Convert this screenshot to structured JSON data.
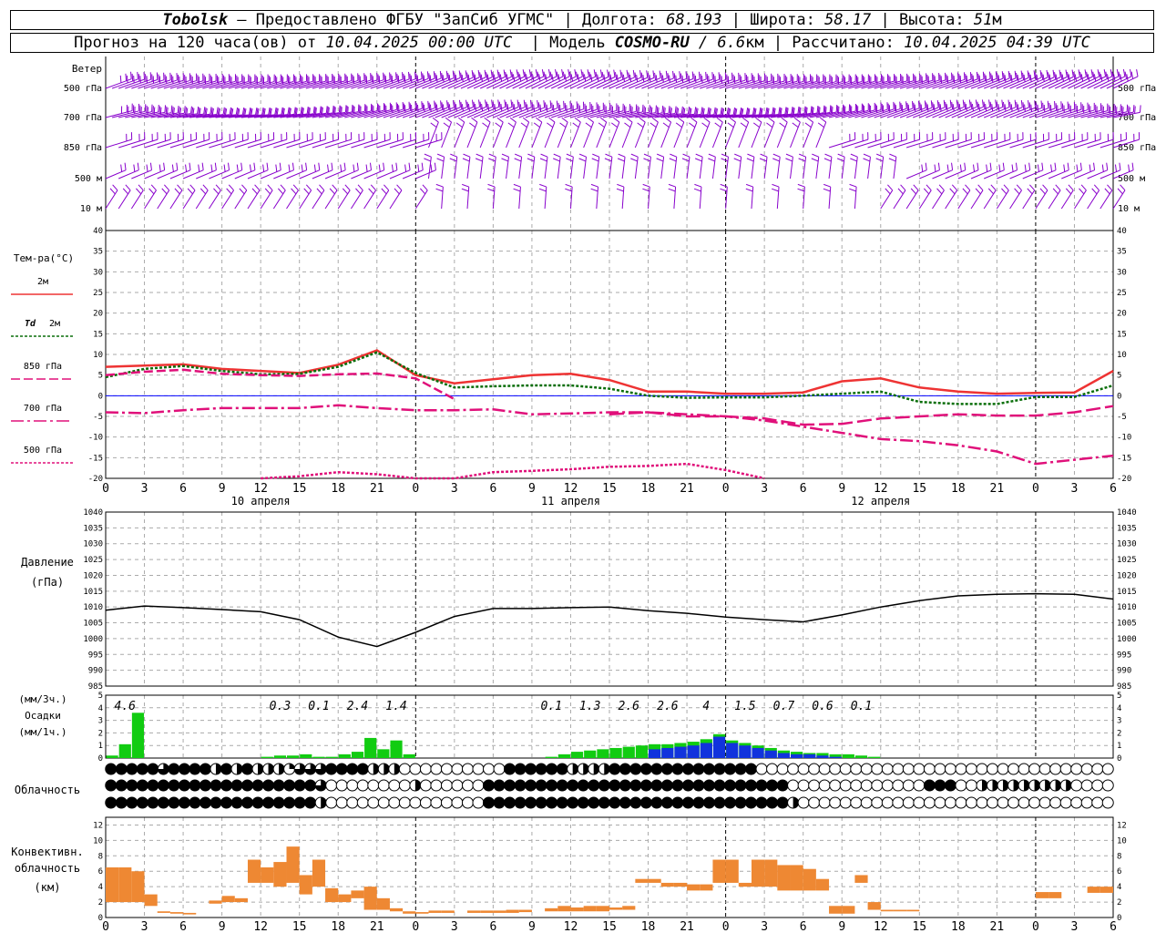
{
  "header": {
    "line1": {
      "city": "Tobolsk",
      "provider": " — Предоставлено ФГБУ \"ЗапСиб УГМС\" | Долгота: ",
      "lon": "68.193",
      "lat_label": " | Широта: ",
      "lat": "58.17",
      "alt_label": " | Высота: ",
      "alt": "51",
      "alt_unit": "м"
    },
    "line2": {
      "prefix": "Прогноз на 120 часа(ов) от ",
      "start": "10.04.2025 00:00 UTC",
      "model_label": "  | Модель ",
      "model": "COSMO-RU",
      "res": " / 6.6",
      "res_unit": "км",
      "calc_label": " | Рассчитано: ",
      "calc": "10.04.2025 04:39 UTC"
    }
  },
  "colors": {
    "wind": "#8800cc",
    "t2m": "#ee3333",
    "td2m": "#0a6e0a",
    "t850": "#e0107a",
    "t700": "#e0107a",
    "t500": "#e0107a",
    "precip_rain": "#11cc11",
    "precip_snow": "#1133dd",
    "conv": "#ee8833",
    "pressure": "#000000",
    "zero_line": "#0000ff",
    "grid": "#aaaaaa"
  },
  "chart_data": [
    {
      "panel": "wind",
      "type": "wind-barbs",
      "title": "Ветер",
      "levels": [
        "500 гПа",
        "700 гПа",
        "850 гПа",
        "500 м",
        "10  м"
      ]
    },
    {
      "panel": "temperature",
      "type": "line",
      "ylabel": "Тем-ра(°C)",
      "ylim": [
        -20,
        40
      ],
      "yticks": [
        -20,
        -15,
        -10,
        -5,
        0,
        5,
        10,
        15,
        20,
        25,
        30,
        35,
        40
      ],
      "x_hours": [
        0,
        3,
        6,
        9,
        12,
        15,
        18,
        21,
        24,
        27,
        30,
        33,
        36,
        39,
        42,
        45,
        48,
        51,
        54,
        57,
        60,
        63,
        66,
        69,
        72,
        75,
        78
      ],
      "series": [
        {
          "name": "2м",
          "style": "solid",
          "values": [
            7,
            7.3,
            7.6,
            6.5,
            6,
            5.5,
            7.5,
            11,
            5,
            3,
            4,
            5,
            5.3,
            3.8,
            1,
            1,
            0.5,
            0.5,
            0.8,
            3.5,
            4.2,
            2,
            1,
            0.5,
            0.7,
            0.8,
            6
          ]
        },
        {
          "name": "Td 2м",
          "style": "dashed",
          "values": [
            4.5,
            6.5,
            7.2,
            6,
            5.2,
            5.3,
            7,
            10.5,
            5.5,
            2,
            2.3,
            2.5,
            2.5,
            1.7,
            0,
            -0.5,
            -0.4,
            -0.4,
            0,
            0.5,
            1,
            -1.5,
            -2,
            -2,
            -0.3,
            -0.3,
            2.5
          ]
        },
        {
          "name": "850 гПа",
          "style": "long-dash",
          "values": [
            5,
            5.8,
            6.3,
            5.3,
            5,
            4.8,
            5.2,
            5.4,
            4.2,
            -0.8,
            null,
            null,
            null,
            null,
            null,
            null,
            null,
            null,
            null,
            null,
            null,
            null,
            null,
            null,
            null,
            null,
            null
          ]
        },
        {
          "name": "700 гПа",
          "style": "dash-dot",
          "values": [
            -4,
            -4.2,
            -3.5,
            -3,
            -3,
            -3,
            -2.3,
            -3,
            -3.5,
            -3.5,
            -3.3,
            -4.5,
            -4.3,
            -4,
            -4,
            -4.5,
            -5,
            -6,
            -7.5,
            -9,
            -10.5,
            -11,
            -12,
            -13.5,
            -16.5,
            -15.5,
            -14.5
          ]
        },
        {
          "name": "500 гПа",
          "style": "dotted",
          "values": [
            null,
            null,
            null,
            null,
            -20,
            -19.5,
            -18.5,
            -19,
            -20.5,
            -22,
            -18.5,
            -18.2,
            -17.8,
            -17.2,
            -17,
            -16.5,
            -18,
            -20.2,
            null,
            null,
            null,
            null,
            null,
            null,
            null,
            null,
            null
          ]
        },
        {
          "name": "",
          "style": "extra-long-dash",
          "values": [
            null,
            null,
            null,
            null,
            null,
            null,
            null,
            null,
            null,
            null,
            null,
            null,
            null,
            -4.5,
            -4,
            -5,
            -5,
            -5.5,
            -7,
            -6.8,
            -5.5,
            -5,
            -4.5,
            -4.8,
            -4.8,
            -4,
            -2.5
          ]
        }
      ],
      "x_tick_labels": [
        "0",
        "3",
        "6",
        "9",
        "12",
        "15",
        "18",
        "21",
        "0",
        "3",
        "6",
        "9",
        "12",
        "15",
        "18",
        "21",
        "0",
        "3",
        "6",
        "9",
        "12",
        "15",
        "18",
        "21",
        "0",
        "3",
        "6"
      ],
      "day_labels": [
        "10 апреля",
        "11 апреля",
        "12 апреля"
      ]
    },
    {
      "panel": "pressure",
      "type": "line",
      "ylabel": "Давление",
      "yunit": "(гПа)",
      "ylim": [
        985,
        1040
      ],
      "yticks": [
        985,
        990,
        995,
        1000,
        1005,
        1010,
        1015,
        1020,
        1025,
        1030,
        1035,
        1040
      ],
      "x_hours": [
        0,
        3,
        6,
        9,
        12,
        15,
        18,
        21,
        24,
        27,
        30,
        33,
        36,
        39,
        42,
        45,
        48,
        51,
        54,
        57,
        60,
        63,
        66,
        69,
        72,
        75,
        78
      ],
      "values": [
        1009,
        1010.3,
        1009.8,
        1009.2,
        1008.5,
        1006,
        1000.5,
        997.5,
        1002,
        1007,
        1009.5,
        1009.5,
        1009.8,
        1010,
        1008.8,
        1008,
        1006.8,
        1006,
        1005.3,
        1007.5,
        1010,
        1012,
        1013.5,
        1014,
        1014.2,
        1014,
        1012.5
      ]
    },
    {
      "panel": "precipitation",
      "type": "bar",
      "ylabel": "(мм/3ч.)",
      "ylabel2": "Осадки",
      "ylabel3": "(мм/1ч.)",
      "ylim": [
        0,
        5
      ],
      "yticks": [
        0,
        1,
        2,
        3,
        4,
        5
      ],
      "totals_3h": [
        {
          "hour": 1.5,
          "label": "4.6"
        },
        {
          "hour": 13.5,
          "label": "0.3"
        },
        {
          "hour": 16.5,
          "label": "0.1"
        },
        {
          "hour": 19.5,
          "label": "2.4"
        },
        {
          "hour": 22.5,
          "label": "1.4"
        },
        {
          "hour": 34.5,
          "label": "0.1"
        },
        {
          "hour": 37.5,
          "label": "1.3"
        },
        {
          "hour": 40.5,
          "label": "2.6"
        },
        {
          "hour": 43.5,
          "label": "2.6"
        },
        {
          "hour": 46.5,
          "label": "4"
        },
        {
          "hour": 49.5,
          "label": "1.5"
        },
        {
          "hour": 52.5,
          "label": "0.7"
        },
        {
          "hour": 55.5,
          "label": "0.6"
        },
        {
          "hour": 58.5,
          "label": "0.1"
        }
      ],
      "rain_1h": [
        0.2,
        1.1,
        3.6,
        0,
        0,
        0,
        0,
        0,
        0,
        0,
        0,
        0,
        0.1,
        0.2,
        0.2,
        0.3,
        0.1,
        0.1,
        0.3,
        0.5,
        1.6,
        0.7,
        1.4,
        0.3,
        0,
        0,
        0,
        0,
        0,
        0,
        0,
        0,
        0,
        0,
        0.1,
        0.3,
        0.5,
        0.6,
        0.7,
        0.8,
        0.9,
        1,
        1.1,
        1.1,
        1.2,
        1.3,
        1.5,
        1.9,
        1.4,
        1.2,
        1,
        0.8,
        0.6,
        0.5,
        0.4,
        0.4,
        0.3,
        0.3,
        0.2,
        0.1,
        0
      ],
      "snow_1h": [
        0,
        0,
        0,
        0,
        0,
        0,
        0,
        0,
        0,
        0,
        0,
        0,
        0,
        0,
        0,
        0,
        0,
        0,
        0,
        0,
        0,
        0,
        0,
        0,
        0,
        0,
        0,
        0,
        0,
        0,
        0,
        0,
        0,
        0,
        0,
        0,
        0,
        0,
        0,
        0,
        0,
        0,
        0.7,
        0.8,
        0.9,
        1,
        1.2,
        1.7,
        1.2,
        1,
        0.8,
        0.6,
        0.4,
        0.3,
        0.3,
        0.2,
        0.1,
        0,
        0,
        0,
        0
      ]
    },
    {
      "panel": "cloudiness",
      "type": "table",
      "ylabel": "Облачность",
      "rows": [
        "444443444424242221333444422200000000004444442222444444444444440000000000000000000000000000000000",
        "444444444444444444443000000002000000444444444444444444444444444440000000000000444002222222220000",
        "444444444444444444442000000000000000444444444444444444444444444442000000000000000000000000000000"
      ]
    },
    {
      "panel": "convective",
      "type": "bar",
      "ylabel": "Конвективн.",
      "ylabel2": "облачность",
      "ylabel3": "(км)",
      "ylim": [
        0,
        13
      ],
      "yticks": [
        0,
        2,
        4,
        6,
        8,
        10,
        12
      ],
      "layers": [
        {
          "h": 0,
          "base": 2,
          "top": 6.5
        },
        {
          "h": 1,
          "base": 2,
          "top": 6.5
        },
        {
          "h": 2,
          "base": 2,
          "top": 6
        },
        {
          "h": 3,
          "base": 1.5,
          "top": 3
        },
        {
          "h": 4,
          "base": 0.6,
          "top": 0.8
        },
        {
          "h": 5,
          "base": 0.5,
          "top": 0.7
        },
        {
          "h": 6,
          "base": 0.4,
          "top": 0.6
        },
        {
          "h": 8,
          "base": 1.8,
          "top": 2.2
        },
        {
          "h": 9,
          "base": 2,
          "top": 2.8
        },
        {
          "h": 10,
          "base": 2,
          "top": 2.5
        },
        {
          "h": 11,
          "base": 4.5,
          "top": 7.5
        },
        {
          "h": 12,
          "base": 4.5,
          "top": 6.5
        },
        {
          "h": 13,
          "base": 4,
          "top": 7.2
        },
        {
          "h": 14,
          "base": 4.5,
          "top": 9.2
        },
        {
          "h": 15,
          "base": 3,
          "top": 5.5
        },
        {
          "h": 16,
          "base": 4,
          "top": 7.5
        },
        {
          "h": 17,
          "base": 2,
          "top": 3.8
        },
        {
          "h": 18,
          "base": 2,
          "top": 3
        },
        {
          "h": 19,
          "base": 2.5,
          "top": 3.5
        },
        {
          "h": 20,
          "base": 1,
          "top": 4
        },
        {
          "h": 21,
          "base": 1,
          "top": 2.5
        },
        {
          "h": 22,
          "base": 0.8,
          "top": 1.2
        },
        {
          "h": 23,
          "base": 0.5,
          "top": 0.8
        },
        {
          "h": 24,
          "base": 0.5,
          "top": 0.7
        },
        {
          "h": 25,
          "base": 0.6,
          "top": 0.9
        },
        {
          "h": 26,
          "base": 0.6,
          "top": 0.9
        },
        {
          "h": 28,
          "base": 0.6,
          "top": 0.9
        },
        {
          "h": 29,
          "base": 0.6,
          "top": 0.9
        },
        {
          "h": 30,
          "base": 0.6,
          "top": 0.9
        },
        {
          "h": 31,
          "base": 0.6,
          "top": 1
        },
        {
          "h": 32,
          "base": 0.7,
          "top": 1
        },
        {
          "h": 34,
          "base": 0.8,
          "top": 1.2
        },
        {
          "h": 35,
          "base": 0.8,
          "top": 1.5
        },
        {
          "h": 36,
          "base": 0.8,
          "top": 1.3
        },
        {
          "h": 37,
          "base": 0.8,
          "top": 1.5
        },
        {
          "h": 38,
          "base": 0.8,
          "top": 1.5
        },
        {
          "h": 39,
          "base": 1,
          "top": 1.3
        },
        {
          "h": 40,
          "base": 1,
          "top": 1.5
        },
        {
          "h": 41,
          "base": 4.5,
          "top": 5
        },
        {
          "h": 42,
          "base": 4.5,
          "top": 5
        },
        {
          "h": 43,
          "base": 4,
          "top": 4.5
        },
        {
          "h": 44,
          "base": 4,
          "top": 4.5
        },
        {
          "h": 45,
          "base": 3.5,
          "top": 4.3
        },
        {
          "h": 46,
          "base": 3.5,
          "top": 4.3
        },
        {
          "h": 47,
          "base": 4.5,
          "top": 7.5
        },
        {
          "h": 48,
          "base": 4.5,
          "top": 7.5
        },
        {
          "h": 49,
          "base": 4,
          "top": 4.5
        },
        {
          "h": 50,
          "base": 4,
          "top": 7.5
        },
        {
          "h": 51,
          "base": 4,
          "top": 7.5
        },
        {
          "h": 52,
          "base": 3.5,
          "top": 6.8
        },
        {
          "h": 53,
          "base": 3.5,
          "top": 6.8
        },
        {
          "h": 54,
          "base": 3.5,
          "top": 6.3
        },
        {
          "h": 55,
          "base": 3.5,
          "top": 5
        },
        {
          "h": 56,
          "base": 0.5,
          "top": 1.5
        },
        {
          "h": 57,
          "base": 0.5,
          "top": 1.5
        },
        {
          "h": 58,
          "base": 4.5,
          "top": 5.5
        },
        {
          "h": 59,
          "base": 1,
          "top": 2
        },
        {
          "h": 60,
          "base": 0.8,
          "top": 1
        },
        {
          "h": 61,
          "base": 0.8,
          "top": 1
        },
        {
          "h": 62,
          "base": 0.8,
          "top": 1
        },
        {
          "h": 72,
          "base": 2.5,
          "top": 3.3
        },
        {
          "h": 73,
          "base": 2.5,
          "top": 3.3
        },
        {
          "h": 76,
          "base": 3.2,
          "top": 4
        },
        {
          "h": 77,
          "base": 3.2,
          "top": 4
        }
      ]
    }
  ]
}
